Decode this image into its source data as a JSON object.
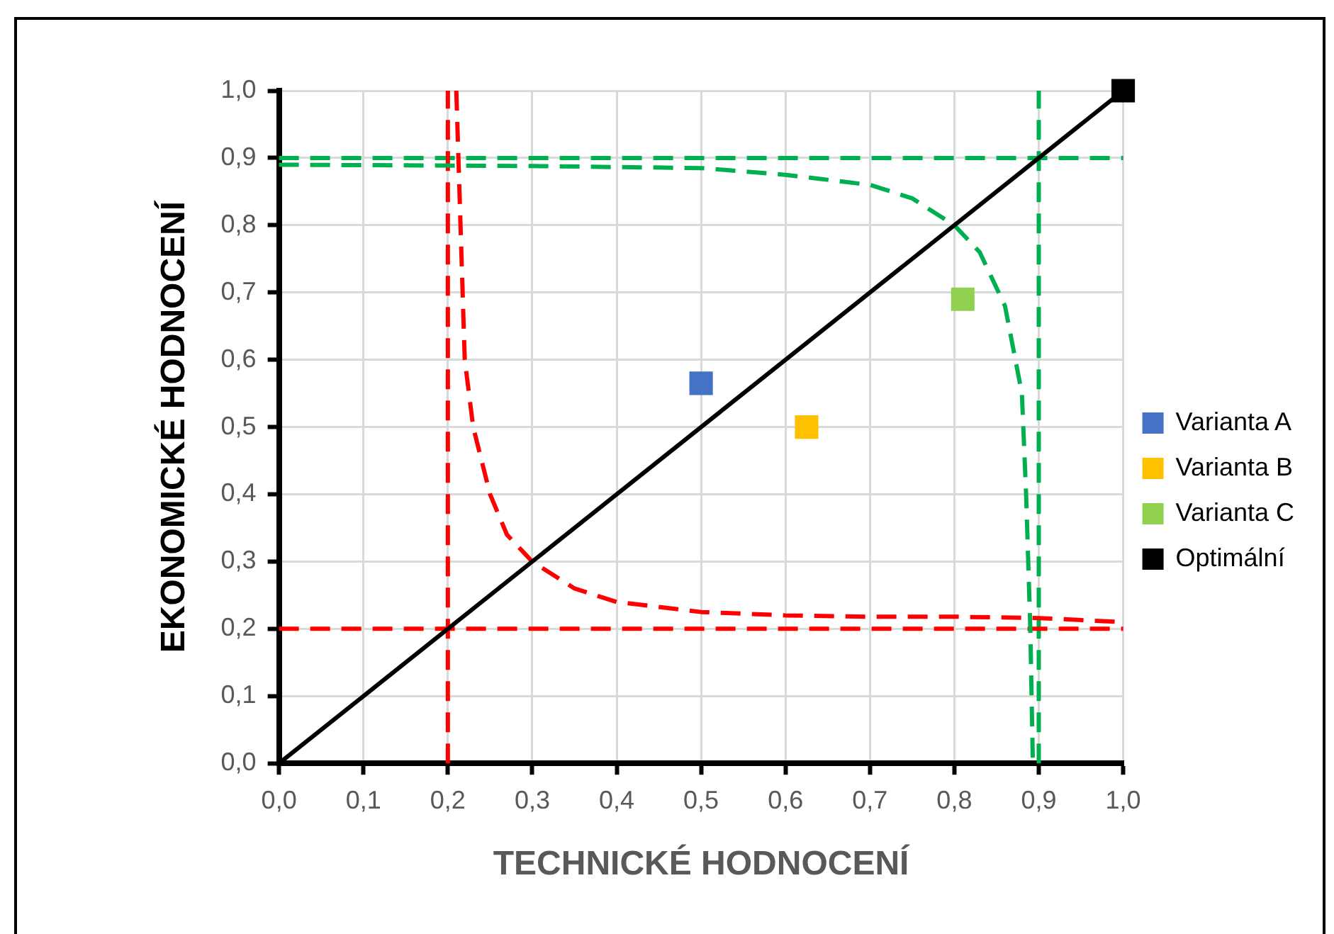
{
  "chart_data": {
    "type": "scatter",
    "xlabel": "TECHNICKÉ HODNOCENÍ",
    "ylabel": "EKONOMICKÉ HODNOCENÍ",
    "xlim": [
      0,
      1
    ],
    "ylim": [
      0,
      1
    ],
    "xticks": [
      {
        "value": 0,
        "label": "0,0"
      },
      {
        "value": 0.1,
        "label": "0,1"
      },
      {
        "value": 0.2,
        "label": "0,2"
      },
      {
        "value": 0.3,
        "label": "0,3"
      },
      {
        "value": 0.4,
        "label": "0,4"
      },
      {
        "value": 0.5,
        "label": "0,5"
      },
      {
        "value": 0.6,
        "label": "0,6"
      },
      {
        "value": 0.7,
        "label": "0,7"
      },
      {
        "value": 0.8,
        "label": "0,8"
      },
      {
        "value": 0.9,
        "label": "0,9"
      },
      {
        "value": 1,
        "label": "1,0"
      }
    ],
    "yticks": [
      {
        "value": 0,
        "label": "0,0"
      },
      {
        "value": 0.1,
        "label": "0,1"
      },
      {
        "value": 0.2,
        "label": "0,2"
      },
      {
        "value": 0.3,
        "label": "0,3"
      },
      {
        "value": 0.4,
        "label": "0,4"
      },
      {
        "value": 0.5,
        "label": "0,5"
      },
      {
        "value": 0.6,
        "label": "0,6"
      },
      {
        "value": 0.7,
        "label": "0,7"
      },
      {
        "value": 0.8,
        "label": "0,8"
      },
      {
        "value": 0.9,
        "label": "0,9"
      },
      {
        "value": 1,
        "label": "1,0"
      }
    ],
    "grid": true,
    "legend": "right",
    "marker": "square",
    "series": [
      {
        "type": "line",
        "color": "#000000",
        "x": [
          0,
          1
        ],
        "values": [
          0,
          1
        ],
        "line_style": "solid",
        "marker": "none"
      },
      {
        "type": "line",
        "color": "#ff0000",
        "x": [
          0.21,
          0.215,
          0.22,
          0.23,
          0.25,
          0.27,
          0.3,
          0.35,
          0.4,
          0.5,
          0.6,
          0.7,
          0.8,
          0.9,
          1.0
        ],
        "values": [
          1.0,
          0.8,
          0.6,
          0.5,
          0.4,
          0.34,
          0.3,
          0.26,
          0.24,
          0.225,
          0.22,
          0.218,
          0.218,
          0.216,
          0.21
        ],
        "line_style": "dashed",
        "marker": "none"
      },
      {
        "type": "line",
        "color": "#00b050",
        "x": [
          0,
          0.3,
          0.5,
          0.6,
          0.7,
          0.75,
          0.8,
          0.83,
          0.86,
          0.88,
          0.885,
          0.89,
          0.893
        ],
        "values": [
          0.89,
          0.888,
          0.885,
          0.875,
          0.86,
          0.84,
          0.8,
          0.76,
          0.68,
          0.55,
          0.4,
          0.2,
          0
        ],
        "line_style": "dashed",
        "marker": "none"
      },
      {
        "type": "line",
        "color": "#ff0000",
        "x": [
          0.2,
          0.2
        ],
        "values": [
          0,
          1
        ],
        "line_style": "dashed",
        "marker": "none"
      },
      {
        "type": "line",
        "color": "#ff0000",
        "x": [
          0,
          1
        ],
        "values": [
          0.2,
          0.2
        ],
        "line_style": "dashed",
        "marker": "none"
      },
      {
        "type": "line",
        "color": "#00b050",
        "x": [
          0.9,
          0.9
        ],
        "values": [
          0,
          1
        ],
        "line_style": "dashed",
        "marker": "none"
      },
      {
        "type": "line",
        "color": "#00b050",
        "x": [
          0,
          1
        ],
        "values": [
          0.9,
          0.9
        ],
        "line_style": "dashed",
        "marker": "none"
      },
      {
        "name": "Varianta A",
        "color": "#4472c4",
        "x": [
          0.5
        ],
        "values": [
          0.565
        ]
      },
      {
        "name": "Varianta B",
        "color": "#ffc000",
        "x": [
          0.625
        ],
        "values": [
          0.5
        ]
      },
      {
        "name": "Varianta C",
        "color": "#92d050",
        "x": [
          0.81
        ],
        "values": [
          0.69
        ]
      },
      {
        "name": "Optimální",
        "color": "#000000",
        "x": [
          1
        ],
        "values": [
          1
        ]
      }
    ]
  }
}
